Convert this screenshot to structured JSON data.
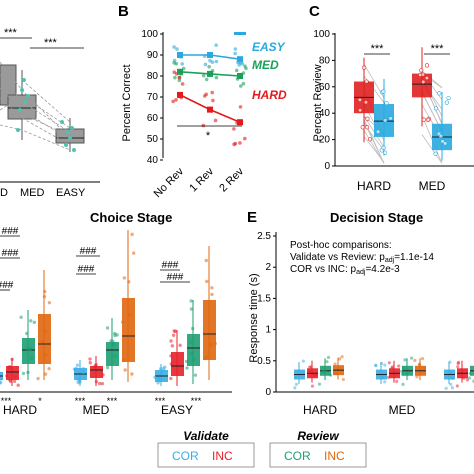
{
  "panels": {
    "A": {
      "x_tick_labels": [
        "D",
        "MED",
        "EASY"
      ],
      "sig": [
        "***",
        "***"
      ]
    },
    "B": {
      "letter": "B",
      "ylabel": "Percent Correct",
      "y_ticks": [
        "40",
        "50",
        "60",
        "70",
        "80",
        "90",
        "100"
      ],
      "x_tick_labels": [
        "No Rev",
        "1 Rev",
        "2 Rev"
      ],
      "series_labels": [
        "EASY",
        "MED",
        "HARD"
      ],
      "sig": "*"
    },
    "C": {
      "letter": "C",
      "ylabel": "Percent Review",
      "y_ticks": [
        "0",
        "20",
        "40",
        "60",
        "80",
        "100"
      ],
      "x_tick_labels": [
        "HARD",
        "MED"
      ],
      "sig": [
        "***",
        "***"
      ]
    },
    "D": {
      "title": "Choice Stage",
      "x_tick_labels": [
        "HARD",
        "MED",
        "EASY"
      ],
      "top_sig": [
        "###",
        "###",
        "###",
        "###",
        "###",
        "###",
        "###"
      ],
      "bottom_sig": [
        "***",
        "*",
        "***",
        "***",
        "***",
        "***"
      ]
    },
    "E": {
      "letter": "E",
      "title": "Decision Stage",
      "ylabel": "Response time (s)",
      "y_ticks": [
        "0",
        "0.5",
        "1",
        "1.5",
        "2",
        "2.5"
      ],
      "x_tick_labels": [
        "HARD",
        "MED"
      ],
      "annotation": {
        "line1": "Post-hoc comparisons:",
        "line2_text": "Validate vs Review: p",
        "line2_sub": "adj",
        "line2_val": "=1.1e-14",
        "line3_text": "COR vs INC: p",
        "line3_sub": "adj",
        "line3_val": "=4.2e-3"
      }
    }
  },
  "legend": {
    "validate_label": "Validate",
    "review_label": "Review",
    "cor_label": "COR",
    "inc_label": "INC"
  },
  "colors": {
    "easy": "#29a9e0",
    "med": "#1aa05a",
    "hard": "#e31a1c",
    "validate_cor": "#3aaee6",
    "validate_inc": "#e8202a",
    "review_cor": "#1e9e72",
    "review_inc": "#e0660f"
  },
  "chart_data": [
    {
      "type": "line",
      "panel": "B",
      "ylabel": "Percent Correct",
      "categories": [
        "No Rev",
        "1 Rev",
        "2 Rev"
      ],
      "ylim": [
        40,
        100
      ],
      "series": [
        {
          "name": "EASY",
          "values": [
            90,
            90,
            88
          ]
        },
        {
          "name": "MED",
          "values": [
            82,
            81,
            80
          ]
        },
        {
          "name": "HARD",
          "values": [
            71,
            64,
            58
          ]
        }
      ]
    },
    {
      "type": "bar",
      "panel": "C",
      "ylabel": "Percent Review",
      "categories": [
        "HARD",
        "MED"
      ],
      "ylim": [
        0,
        100
      ],
      "series": [
        {
          "name": "INC",
          "values": [
            52,
            62
          ]
        },
        {
          "name": "COR",
          "values": [
            36,
            22
          ]
        }
      ]
    },
    {
      "type": "bar",
      "panel": "E",
      "ylabel": "Response time (s)",
      "categories": [
        "HARD",
        "MED"
      ],
      "ylim": [
        0,
        2.5
      ],
      "series": [
        {
          "name": "Validate COR",
          "values": [
            0.28,
            0.28
          ]
        },
        {
          "name": "Validate INC",
          "values": [
            0.3,
            0.3
          ]
        },
        {
          "name": "Review COR",
          "values": [
            0.34,
            0.34
          ]
        },
        {
          "name": "Review INC",
          "values": [
            0.35,
            0.34
          ]
        }
      ]
    }
  ]
}
